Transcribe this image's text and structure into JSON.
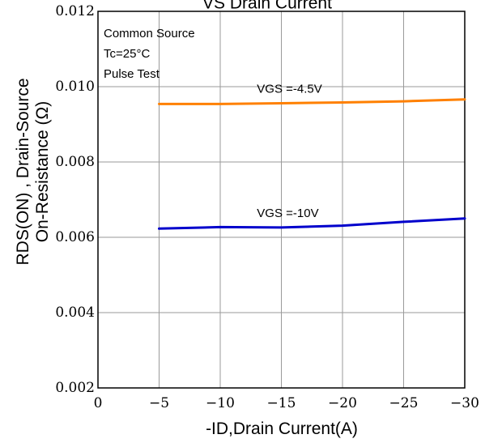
{
  "chart_data": {
    "type": "line",
    "title": "VS Drain Current",
    "xlabel": "-ID,Drain Current(A)",
    "ylabel_line1": "RDS(ON) , Drain-Source",
    "ylabel_line2": "On-Resistance (Ω)",
    "x_ticks": [
      "0",
      "−5",
      "−10",
      "−15",
      "−20",
      "−25",
      "−30"
    ],
    "y_ticks": [
      "0.002",
      "0.004",
      "0.006",
      "0.008",
      "0.010",
      "0.012"
    ],
    "xlim": [
      0,
      -30
    ],
    "ylim": [
      0.002,
      0.012
    ],
    "grid": true,
    "annotations": [
      "Common Source",
      "Tc=25°C",
      "Pulse Test"
    ],
    "series": [
      {
        "name": "VGS =-4.5V",
        "color": "#ff8000",
        "x": [
          -5,
          -10,
          -15,
          -20,
          -25,
          -30
        ],
        "y": [
          0.00954,
          0.00954,
          0.00956,
          0.00958,
          0.00961,
          0.00966
        ]
      },
      {
        "name": "VGS =-10V",
        "color": "#0000cc",
        "x": [
          -5,
          -10,
          -15,
          -20,
          -25,
          -30
        ],
        "y": [
          0.00623,
          0.00627,
          0.00626,
          0.00631,
          0.00641,
          0.0065
        ]
      }
    ]
  }
}
